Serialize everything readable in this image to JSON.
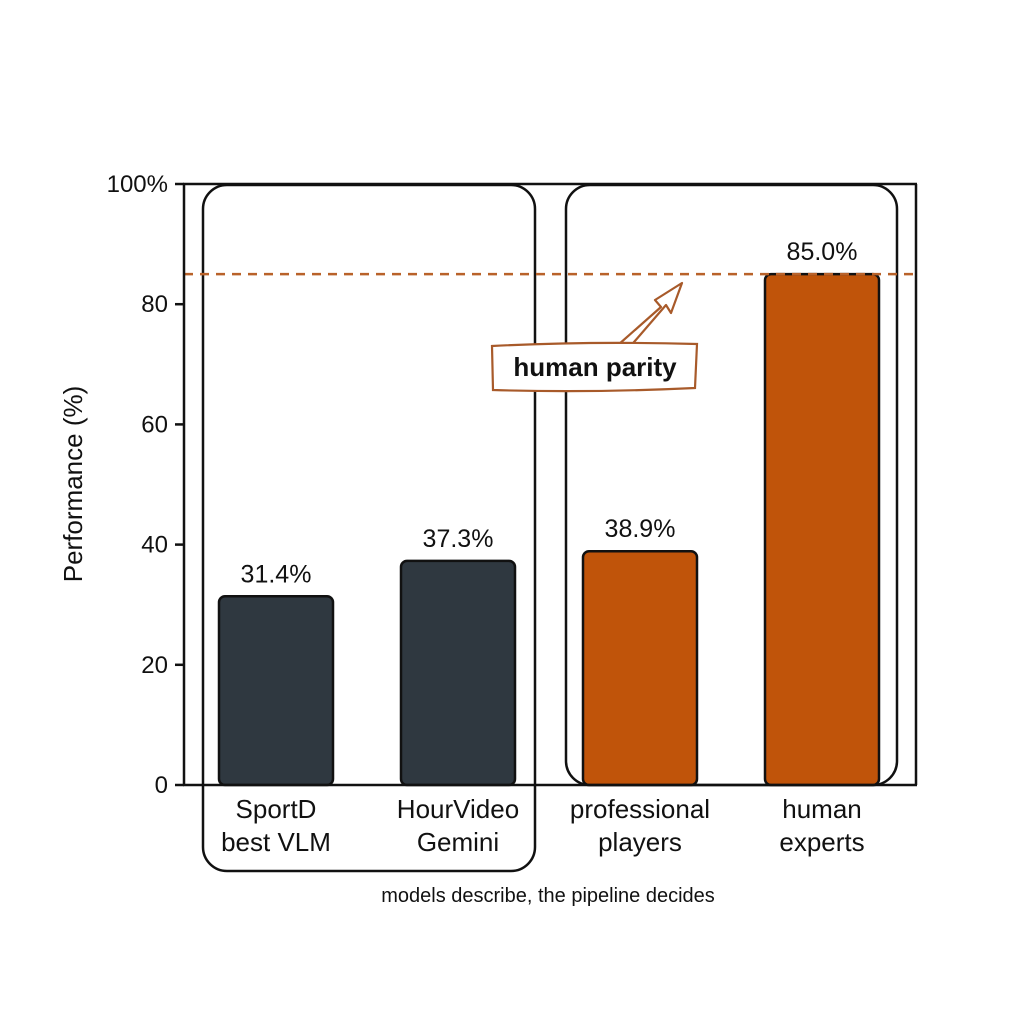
{
  "chart_data": {
    "type": "bar",
    "categories": [
      [
        "SportD",
        "best VLM"
      ],
      [
        "HourVideo",
        "Gemini"
      ],
      [
        "professional",
        "players"
      ],
      [
        "human",
        "experts"
      ]
    ],
    "values": [
      31.4,
      37.3,
      38.9,
      85.0
    ],
    "value_labels": [
      "31.4%",
      "37.3%",
      "38.9%",
      "85.0%"
    ],
    "ylabel": "Performance (%)",
    "ylim": [
      0,
      100
    ],
    "yticks": [
      0,
      20,
      40,
      60,
      80,
      100
    ],
    "ytick_labels": [
      "0",
      "20",
      "40",
      "60",
      "80",
      "100%"
    ],
    "reference_line": {
      "value": 85.0,
      "label": "human parity"
    },
    "caption": "models describe, the pipeline decides",
    "grid": false,
    "colors": {
      "model_bars": "#2f3840",
      "human_bars": "#c0540a",
      "reference_line": "#b9622a",
      "annotation_border": "#a85a2a"
    }
  }
}
